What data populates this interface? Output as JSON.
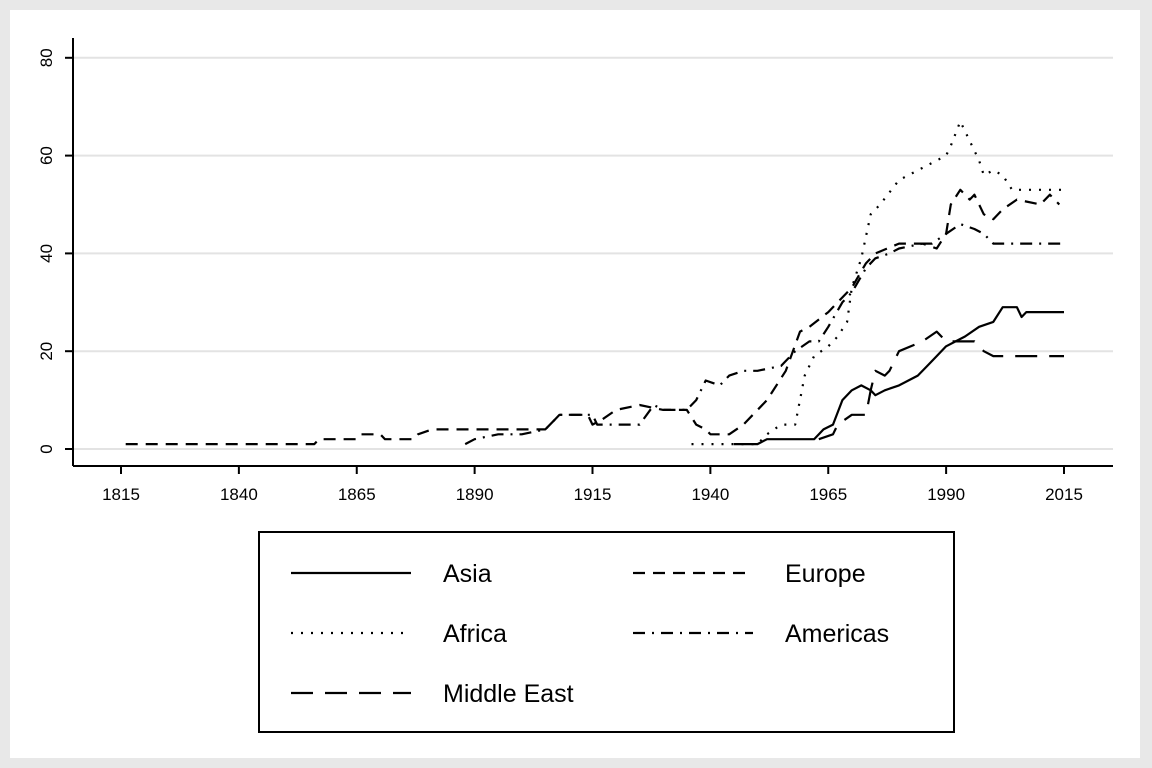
{
  "chart_data": {
    "type": "line",
    "title": "",
    "xlabel": "",
    "ylabel": "",
    "xlim": [
      1805,
      2025
    ],
    "ylim": [
      0,
      80
    ],
    "x_ticks": [
      "1815",
      "1840",
      "1865",
      "1890",
      "1915",
      "1940",
      "1965",
      "1990",
      "2015"
    ],
    "y_ticks": [
      "0",
      "20",
      "40",
      "60",
      "80"
    ],
    "grid": true,
    "legend_placement": "bottom",
    "series": [
      {
        "name": "Asia",
        "style": "solid",
        "points": [
          [
            1945,
            1
          ],
          [
            1950,
            1
          ],
          [
            1952,
            2
          ],
          [
            1962,
            2
          ],
          [
            1964,
            4
          ],
          [
            1966,
            5
          ],
          [
            1968,
            10
          ],
          [
            1970,
            12
          ],
          [
            1972,
            13
          ],
          [
            1974,
            12
          ],
          [
            1975,
            11
          ],
          [
            1977,
            12
          ],
          [
            1980,
            13
          ],
          [
            1982,
            14
          ],
          [
            1984,
            15
          ],
          [
            1986,
            17
          ],
          [
            1988,
            19
          ],
          [
            1990,
            21
          ],
          [
            1992,
            22
          ],
          [
            1994,
            23
          ],
          [
            1997,
            25
          ],
          [
            2000,
            26
          ],
          [
            2002,
            29
          ],
          [
            2005,
            29
          ],
          [
            2006,
            27
          ],
          [
            2007,
            28
          ],
          [
            2015,
            28
          ]
        ]
      },
      {
        "name": "Europe",
        "style": "dash",
        "points": [
          [
            1816,
            1
          ],
          [
            1856,
            1
          ],
          [
            1857,
            2
          ],
          [
            1865,
            2
          ],
          [
            1866,
            3
          ],
          [
            1870,
            3
          ],
          [
            1871,
            2
          ],
          [
            1877,
            2
          ],
          [
            1878,
            3
          ],
          [
            1881,
            4
          ],
          [
            1905,
            4
          ],
          [
            1906,
            5
          ],
          [
            1908,
            7
          ],
          [
            1914,
            7
          ],
          [
            1915,
            5
          ],
          [
            1917,
            6
          ],
          [
            1920,
            8
          ],
          [
            1925,
            9
          ],
          [
            1930,
            8
          ],
          [
            1935,
            8
          ],
          [
            1937,
            5
          ],
          [
            1939,
            4
          ],
          [
            1940,
            3
          ],
          [
            1944,
            3
          ],
          [
            1947,
            5
          ],
          [
            1952,
            10
          ],
          [
            1956,
            16
          ],
          [
            1959,
            24
          ],
          [
            1961,
            25
          ],
          [
            1965,
            28
          ],
          [
            1967,
            30
          ],
          [
            1970,
            33
          ],
          [
            1973,
            38
          ],
          [
            1975,
            40
          ],
          [
            1980,
            42
          ],
          [
            1985,
            42
          ],
          [
            1988,
            41
          ],
          [
            1990,
            44
          ],
          [
            1991,
            50
          ],
          [
            1993,
            53
          ],
          [
            1995,
            51
          ],
          [
            1996,
            52
          ],
          [
            1998,
            48
          ],
          [
            2000,
            47
          ],
          [
            2002,
            49
          ],
          [
            2005,
            51
          ],
          [
            2010,
            50
          ],
          [
            2012,
            52
          ],
          [
            2014,
            50
          ]
        ]
      },
      {
        "name": "Africa",
        "style": "dot",
        "points": [
          [
            1936,
            1
          ],
          [
            1950,
            1
          ],
          [
            1952,
            3
          ],
          [
            1955,
            5
          ],
          [
            1958,
            5
          ],
          [
            1960,
            15
          ],
          [
            1962,
            19
          ],
          [
            1965,
            21
          ],
          [
            1967,
            23
          ],
          [
            1969,
            26
          ],
          [
            1970,
            33
          ],
          [
            1972,
            39
          ],
          [
            1974,
            48
          ],
          [
            1976,
            50
          ],
          [
            1980,
            55
          ],
          [
            1984,
            57
          ],
          [
            1988,
            59
          ],
          [
            1990,
            60
          ],
          [
            1991,
            62
          ],
          [
            1993,
            67
          ],
          [
            1995,
            63
          ],
          [
            1997,
            59
          ],
          [
            1998,
            56
          ],
          [
            2000,
            57
          ],
          [
            2002,
            56
          ],
          [
            2004,
            53
          ],
          [
            2008,
            53
          ],
          [
            2015,
            53
          ]
        ]
      },
      {
        "name": "Americas",
        "style": "dashdot",
        "points": [
          [
            1888,
            1
          ],
          [
            1890,
            2
          ],
          [
            1895,
            3
          ],
          [
            1900,
            3
          ],
          [
            1905,
            4
          ],
          [
            1908,
            7
          ],
          [
            1915,
            7
          ],
          [
            1916,
            5
          ],
          [
            1920,
            5
          ],
          [
            1925,
            5
          ],
          [
            1928,
            9
          ],
          [
            1930,
            8
          ],
          [
            1935,
            8
          ],
          [
            1937,
            10
          ],
          [
            1939,
            14
          ],
          [
            1942,
            13
          ],
          [
            1944,
            15
          ],
          [
            1947,
            16
          ],
          [
            1950,
            16
          ],
          [
            1955,
            17
          ],
          [
            1958,
            20
          ],
          [
            1961,
            22
          ],
          [
            1963,
            22
          ],
          [
            1965,
            25
          ],
          [
            1968,
            30
          ],
          [
            1970,
            32
          ],
          [
            1973,
            37
          ],
          [
            1975,
            39
          ],
          [
            1978,
            40
          ],
          [
            1980,
            41
          ],
          [
            1985,
            42
          ],
          [
            1987,
            42
          ],
          [
            1990,
            44
          ],
          [
            1993,
            46
          ],
          [
            1996,
            45
          ],
          [
            1998,
            44
          ],
          [
            2000,
            42
          ],
          [
            2015,
            42
          ]
        ]
      },
      {
        "name": "Middle East",
        "style": "longdash",
        "points": [
          [
            1963,
            2
          ],
          [
            1966,
            3
          ],
          [
            1967,
            5
          ],
          [
            1970,
            7
          ],
          [
            1973,
            7
          ],
          [
            1974,
            12
          ],
          [
            1975,
            16
          ],
          [
            1977,
            15
          ],
          [
            1978,
            16
          ],
          [
            1980,
            20
          ],
          [
            1985,
            22
          ],
          [
            1988,
            24
          ],
          [
            1990,
            22
          ],
          [
            1993,
            22
          ],
          [
            1996,
            22
          ],
          [
            1998,
            20
          ],
          [
            2000,
            19
          ],
          [
            2015,
            19
          ]
        ]
      }
    ]
  }
}
